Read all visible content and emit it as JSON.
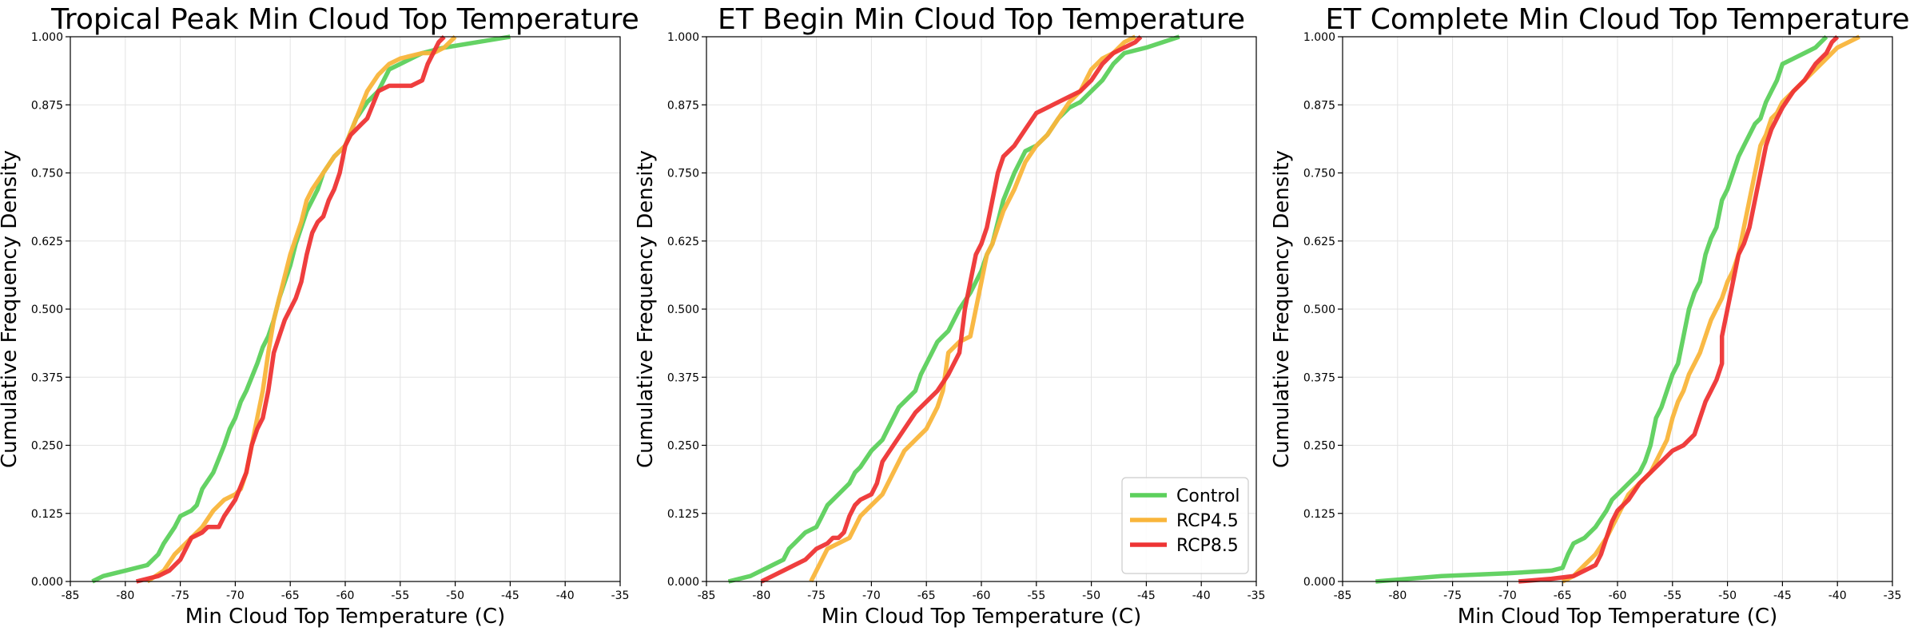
{
  "series_colors": {
    "Control": "#5cd05c",
    "RCP4.5": "#f9b53b",
    "RCP8.5": "#ee3434"
  },
  "chart_data": [
    {
      "type": "line",
      "title": "Tropical Peak Min Cloud Top Temperature",
      "xlabel": "Min Cloud Top Temperature (C)",
      "ylabel": "Cumulative Frequency Density",
      "xlim": [
        -85,
        -35
      ],
      "ylim": [
        0,
        1
      ],
      "xticks": [
        "-85",
        "-80",
        "-75",
        "-70",
        "-65",
        "-60",
        "-55",
        "-50",
        "-45",
        "-40",
        "-35"
      ],
      "yticks": [
        "0.000",
        "0.125",
        "0.250",
        "0.375",
        "0.500",
        "0.625",
        "0.750",
        "0.875",
        "1.000"
      ],
      "grid": true,
      "series": [
        {
          "name": "Control",
          "x": [
            -83,
            -82,
            -80,
            -78,
            -77,
            -76.5,
            -75.5,
            -75,
            -74,
            -73.5,
            -73,
            -72,
            -71,
            -70.5,
            -70,
            -69.5,
            -69,
            -68,
            -67.5,
            -67,
            -66.5,
            -66,
            -65.5,
            -65,
            -64.5,
            -64,
            -63.5,
            -63,
            -62.5,
            -62,
            -61,
            -60,
            -59,
            -58,
            -57,
            -56,
            -55,
            -54,
            -53,
            -51,
            -48,
            -45
          ],
          "y": [
            0.0,
            0.01,
            0.02,
            0.03,
            0.05,
            0.07,
            0.1,
            0.12,
            0.13,
            0.14,
            0.17,
            0.2,
            0.25,
            0.28,
            0.3,
            0.33,
            0.35,
            0.4,
            0.43,
            0.45,
            0.48,
            0.52,
            0.55,
            0.58,
            0.62,
            0.65,
            0.68,
            0.7,
            0.72,
            0.75,
            0.78,
            0.8,
            0.85,
            0.88,
            0.9,
            0.94,
            0.95,
            0.96,
            0.97,
            0.98,
            0.99,
            1.0
          ]
        },
        {
          "name": "RCP4.5",
          "x": [
            -78,
            -76.5,
            -75.5,
            -74,
            -73,
            -72,
            -71,
            -70,
            -69.5,
            -69,
            -68.5,
            -68,
            -67.5,
            -67,
            -66.5,
            -66,
            -65.5,
            -65,
            -64.5,
            -64,
            -63.5,
            -63,
            -62,
            -61,
            -60,
            -59,
            -58,
            -57,
            -56,
            -55,
            -53,
            -52,
            -51,
            -50.5,
            -50
          ],
          "y": [
            0.0,
            0.02,
            0.05,
            0.08,
            0.1,
            0.13,
            0.15,
            0.16,
            0.17,
            0.2,
            0.25,
            0.3,
            0.35,
            0.42,
            0.48,
            0.52,
            0.56,
            0.6,
            0.63,
            0.66,
            0.7,
            0.72,
            0.75,
            0.78,
            0.8,
            0.85,
            0.9,
            0.93,
            0.95,
            0.96,
            0.97,
            0.97,
            0.98,
            0.99,
            1.0
          ]
        },
        {
          "name": "RCP8.5",
          "x": [
            -79,
            -77,
            -76,
            -75,
            -74.5,
            -74,
            -73,
            -72.5,
            -71.5,
            -71,
            -70,
            -69,
            -68.5,
            -68,
            -67.5,
            -67,
            -66.5,
            -66,
            -65.5,
            -65,
            -64.5,
            -64,
            -63.5,
            -63,
            -62.5,
            -62,
            -61.5,
            -61,
            -60.5,
            -60,
            -59.5,
            -59,
            -58.5,
            -58,
            -57,
            -56,
            -55,
            -54,
            -53,
            -52.5,
            -52,
            -51.5,
            -51
          ],
          "y": [
            0.0,
            0.01,
            0.02,
            0.04,
            0.06,
            0.08,
            0.09,
            0.1,
            0.1,
            0.12,
            0.15,
            0.2,
            0.25,
            0.28,
            0.3,
            0.35,
            0.42,
            0.45,
            0.48,
            0.5,
            0.52,
            0.55,
            0.6,
            0.64,
            0.66,
            0.67,
            0.7,
            0.72,
            0.75,
            0.8,
            0.82,
            0.83,
            0.84,
            0.85,
            0.9,
            0.91,
            0.91,
            0.91,
            0.92,
            0.95,
            0.97,
            0.99,
            1.0
          ]
        }
      ]
    },
    {
      "type": "line",
      "title": "ET Begin Min Cloud Top Temperature",
      "xlabel": "Min Cloud Top Temperature (C)",
      "ylabel": "Cumulative Frequency Density",
      "xlim": [
        -85,
        -35
      ],
      "ylim": [
        0,
        1
      ],
      "xticks": [
        "-85",
        "-80",
        "-75",
        "-70",
        "-65",
        "-60",
        "-55",
        "-50",
        "-45",
        "-40",
        "-35"
      ],
      "yticks": [
        "0.000",
        "0.125",
        "0.250",
        "0.375",
        "0.500",
        "0.625",
        "0.750",
        "0.875",
        "1.000"
      ],
      "grid": true,
      "legend": "lower-right",
      "series": [
        {
          "name": "Control",
          "x": [
            -83,
            -81,
            -79,
            -78,
            -77.5,
            -77,
            -76,
            -75,
            -74.5,
            -74,
            -73,
            -72,
            -71.5,
            -71,
            -70,
            -69,
            -68.5,
            -68,
            -67.5,
            -67,
            -66,
            -65.5,
            -65,
            -64.5,
            -64,
            -63.5,
            -63,
            -62.5,
            -62,
            -61,
            -60.5,
            -60,
            -59.5,
            -59,
            -58,
            -57,
            -56,
            -55,
            -54,
            -53,
            -52,
            -51,
            -50,
            -49,
            -48,
            -47,
            -45,
            -42
          ],
          "y": [
            0.0,
            0.01,
            0.03,
            0.04,
            0.06,
            0.07,
            0.09,
            0.1,
            0.12,
            0.14,
            0.16,
            0.18,
            0.2,
            0.21,
            0.24,
            0.26,
            0.28,
            0.3,
            0.32,
            0.33,
            0.35,
            0.38,
            0.4,
            0.42,
            0.44,
            0.45,
            0.46,
            0.48,
            0.5,
            0.53,
            0.55,
            0.57,
            0.6,
            0.62,
            0.7,
            0.75,
            0.79,
            0.8,
            0.82,
            0.85,
            0.87,
            0.88,
            0.9,
            0.92,
            0.95,
            0.97,
            0.98,
            1.0
          ]
        },
        {
          "name": "RCP4.5",
          "x": [
            -75.5,
            -75,
            -74.5,
            -74,
            -73,
            -72,
            -71.5,
            -71,
            -70.5,
            -70,
            -69,
            -68,
            -67,
            -66,
            -65,
            -64,
            -63.5,
            -63,
            -62,
            -61,
            -60.5,
            -60,
            -59.5,
            -59,
            -58,
            -57,
            -56,
            -55,
            -54,
            -53,
            -52,
            -51,
            -50,
            -49,
            -48,
            -47,
            -46
          ],
          "y": [
            0.0,
            0.02,
            0.04,
            0.06,
            0.07,
            0.08,
            0.1,
            0.12,
            0.13,
            0.14,
            0.16,
            0.2,
            0.24,
            0.26,
            0.28,
            0.32,
            0.35,
            0.42,
            0.44,
            0.45,
            0.5,
            0.55,
            0.6,
            0.62,
            0.68,
            0.72,
            0.77,
            0.8,
            0.82,
            0.85,
            0.88,
            0.9,
            0.94,
            0.96,
            0.97,
            0.99,
            1.0
          ]
        },
        {
          "name": "RCP8.5",
          "x": [
            -80,
            -79,
            -78,
            -77,
            -76,
            -75,
            -74,
            -73.5,
            -73,
            -72.5,
            -72,
            -71.5,
            -71,
            -70,
            -69.5,
            -69,
            -68,
            -67,
            -66,
            -65,
            -64,
            -63,
            -62,
            -61.5,
            -61,
            -60.5,
            -60,
            -59.5,
            -59,
            -58.5,
            -58,
            -57,
            -56,
            -55,
            -54,
            -53,
            -52,
            -51,
            -50,
            -49,
            -48,
            -47,
            -46,
            -45.5
          ],
          "y": [
            0.0,
            0.01,
            0.02,
            0.03,
            0.04,
            0.06,
            0.07,
            0.08,
            0.08,
            0.09,
            0.12,
            0.14,
            0.15,
            0.16,
            0.18,
            0.22,
            0.25,
            0.28,
            0.31,
            0.33,
            0.35,
            0.38,
            0.42,
            0.5,
            0.55,
            0.6,
            0.62,
            0.65,
            0.7,
            0.75,
            0.78,
            0.8,
            0.83,
            0.86,
            0.87,
            0.88,
            0.89,
            0.9,
            0.92,
            0.95,
            0.97,
            0.98,
            0.99,
            1.0
          ]
        }
      ]
    },
    {
      "type": "line",
      "title": "ET Complete Min Cloud Top Temperature",
      "xlabel": "Min Cloud Top Temperature (C)",
      "ylabel": "Cumulative Frequency Density",
      "xlim": [
        -85,
        -35
      ],
      "ylim": [
        0,
        1
      ],
      "xticks": [
        "-85",
        "-80",
        "-75",
        "-70",
        "-65",
        "-60",
        "-55",
        "-50",
        "-45",
        "-40",
        "-35"
      ],
      "yticks": [
        "0.000",
        "0.125",
        "0.250",
        "0.375",
        "0.500",
        "0.625",
        "0.750",
        "0.875",
        "1.000"
      ],
      "grid": true,
      "series": [
        {
          "name": "Control",
          "x": [
            -82,
            -76,
            -70,
            -66,
            -65,
            -64.5,
            -64,
            -63,
            -62,
            -61,
            -60.5,
            -60,
            -59,
            -58,
            -57.5,
            -57,
            -56.5,
            -56,
            -55.5,
            -55,
            -54.5,
            -54,
            -53.5,
            -53,
            -52.5,
            -52,
            -51.5,
            -51,
            -50.5,
            -50,
            -49.5,
            -49,
            -48.5,
            -48,
            -47.5,
            -47,
            -46.5,
            -46,
            -45.5,
            -45,
            -44,
            -43,
            -42,
            -41
          ],
          "y": [
            0.0,
            0.01,
            0.015,
            0.02,
            0.025,
            0.05,
            0.07,
            0.08,
            0.1,
            0.13,
            0.15,
            0.16,
            0.18,
            0.2,
            0.22,
            0.25,
            0.3,
            0.32,
            0.35,
            0.38,
            0.4,
            0.45,
            0.5,
            0.53,
            0.55,
            0.6,
            0.63,
            0.65,
            0.7,
            0.72,
            0.75,
            0.78,
            0.8,
            0.82,
            0.84,
            0.85,
            0.88,
            0.9,
            0.92,
            0.95,
            0.96,
            0.97,
            0.98,
            1.0
          ]
        },
        {
          "name": "RCP4.5",
          "x": [
            -65,
            -64,
            -63,
            -62,
            -61,
            -60,
            -59,
            -58,
            -57,
            -56,
            -55.5,
            -55,
            -54.5,
            -54,
            -53.5,
            -53,
            -52.5,
            -52,
            -51.5,
            -51,
            -50.5,
            -50,
            -49.5,
            -49,
            -48.5,
            -48,
            -47.5,
            -47,
            -46.5,
            -46,
            -45.5,
            -45,
            -44,
            -43,
            -42,
            -41,
            -40,
            -39,
            -38
          ],
          "y": [
            0.0,
            0.01,
            0.03,
            0.05,
            0.08,
            0.12,
            0.16,
            0.18,
            0.2,
            0.24,
            0.26,
            0.3,
            0.33,
            0.35,
            0.38,
            0.4,
            0.42,
            0.45,
            0.48,
            0.5,
            0.52,
            0.55,
            0.57,
            0.6,
            0.65,
            0.7,
            0.75,
            0.8,
            0.82,
            0.85,
            0.86,
            0.88,
            0.9,
            0.92,
            0.94,
            0.96,
            0.98,
            0.99,
            1.0
          ]
        },
        {
          "name": "RCP8.5",
          "x": [
            -69,
            -66,
            -64,
            -63,
            -62,
            -61.5,
            -61,
            -60.5,
            -60,
            -59,
            -58,
            -57,
            -56,
            -55,
            -54,
            -53,
            -52.5,
            -52,
            -51.5,
            -51,
            -50.5,
            -50.5,
            -50,
            -49.5,
            -49,
            -48.5,
            -48,
            -47.5,
            -47,
            -46.5,
            -46,
            -45.5,
            -45,
            -44,
            -43,
            -42,
            -41,
            -40.5,
            -40
          ],
          "y": [
            0.0,
            0.005,
            0.01,
            0.02,
            0.03,
            0.05,
            0.08,
            0.11,
            0.13,
            0.15,
            0.18,
            0.2,
            0.22,
            0.24,
            0.25,
            0.27,
            0.3,
            0.33,
            0.35,
            0.37,
            0.4,
            0.45,
            0.5,
            0.55,
            0.6,
            0.62,
            0.65,
            0.7,
            0.75,
            0.8,
            0.83,
            0.85,
            0.87,
            0.9,
            0.92,
            0.95,
            0.97,
            0.99,
            1.0
          ]
        }
      ]
    }
  ]
}
